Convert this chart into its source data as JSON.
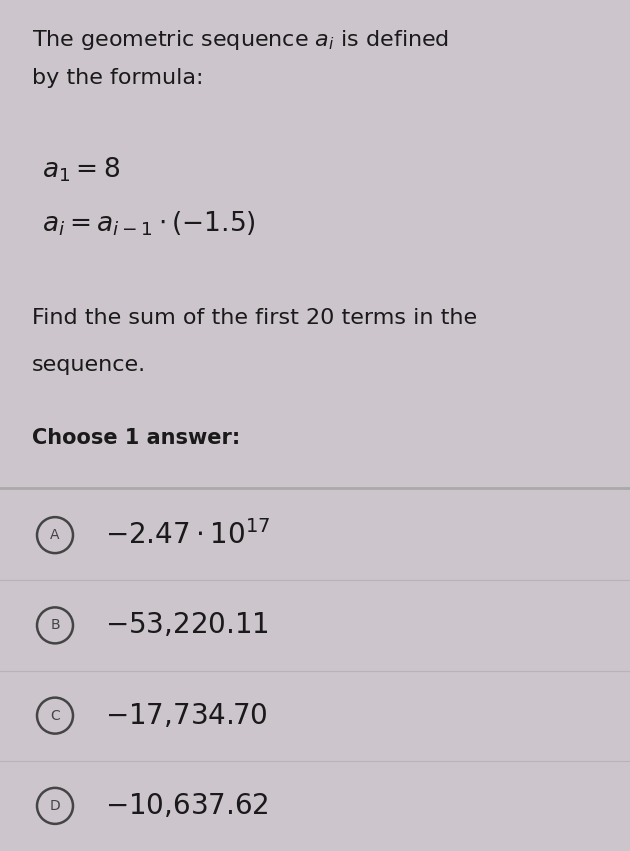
{
  "bg_color_top": "#ccc5cc",
  "bg_color_answers": "#e0dce0",
  "text_color": "#1a1a1a",
  "title_line1": "The geometric sequence $a_i$ is defined",
  "title_line2": "by the formula:",
  "formula1": "$a_1 = 8$",
  "formula2": "$a_i = a_{i-1} \\cdot (-1.5)$",
  "question_line1": "Find the sum of the first 20 terms in the",
  "question_line2": "sequence.",
  "choose": "Choose 1 answer:",
  "answers": [
    {
      "label": "A",
      "text": "$-2.47 \\cdot 10^{17}$"
    },
    {
      "label": "B",
      "text": "$-53{,}220.11$"
    },
    {
      "label": "C",
      "text": "$-17{,}734.70$"
    },
    {
      "label": "D",
      "text": "$-10{,}637.62$"
    }
  ],
  "divider_color": "#aaaaaa",
  "circle_color": "#444444",
  "font_size_title": 16,
  "font_size_formula": 19,
  "font_size_question": 16,
  "font_size_choose": 15,
  "font_size_answer": 20,
  "fig_width": 6.3,
  "fig_height": 8.51,
  "dpi": 100
}
